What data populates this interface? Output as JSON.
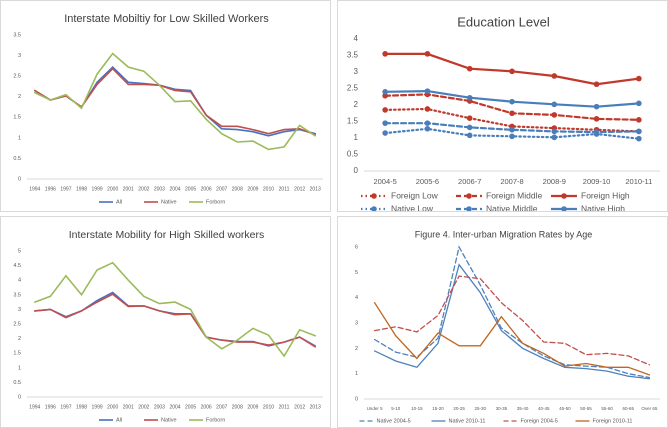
{
  "chart_data": [
    {
      "type": "line",
      "title": "Interstate Mobiltiy for Low Skilled Workers",
      "categories": [
        "1994",
        "1996",
        "1997",
        "1998",
        "1999",
        "2000",
        "2001",
        "2002",
        "2003",
        "2004",
        "2005",
        "2006",
        "2007",
        "2008",
        "2009",
        "2010",
        "2011",
        "2012",
        "2013"
      ],
      "ylim": [
        0,
        3.5
      ],
      "yticks": [
        0,
        0.5,
        1,
        1.5,
        2,
        2.5,
        3,
        3.5
      ],
      "legend": "bottom",
      "series": [
        {
          "name": "All",
          "color": "#4472c4",
          "dash": "solid",
          "values": [
            2.15,
            1.92,
            2.02,
            1.75,
            2.35,
            2.72,
            2.35,
            2.32,
            2.28,
            2.18,
            2.15,
            1.55,
            1.22,
            1.2,
            1.15,
            1.05,
            1.15,
            1.2,
            1.1
          ]
        },
        {
          "name": "Native",
          "color": "#c0504d",
          "dash": "solid",
          "values": [
            2.15,
            1.92,
            2.02,
            1.75,
            2.3,
            2.68,
            2.3,
            2.3,
            2.28,
            2.15,
            2.12,
            1.55,
            1.28,
            1.28,
            1.2,
            1.1,
            1.2,
            1.22,
            1.08
          ]
        },
        {
          "name": "Forborn",
          "color": "#9bbb59",
          "dash": "solid",
          "values": [
            2.1,
            1.92,
            2.05,
            1.72,
            2.55,
            3.05,
            2.72,
            2.62,
            2.28,
            1.88,
            1.9,
            1.45,
            1.1,
            0.9,
            0.92,
            0.72,
            0.78,
            1.3,
            1.05
          ]
        }
      ]
    },
    {
      "type": "line",
      "title": "Education Level",
      "categories": [
        "2004-5",
        "2005-6",
        "2006-7",
        "2007-8",
        "2008-9",
        "2009-10",
        "2010-11"
      ],
      "ylim": [
        0,
        4
      ],
      "yticks": [
        0,
        0.5,
        1,
        1.5,
        2,
        2.5,
        3,
        3.5,
        4
      ],
      "legend": "bottom",
      "markers": true,
      "series": [
        {
          "name": "Foreign Low",
          "color": "#c0392b",
          "dash": "dotted",
          "values": [
            1.85,
            1.88,
            1.6,
            1.35,
            1.3,
            1.25,
            1.2
          ]
        },
        {
          "name": "Foreign Middle",
          "color": "#c0392b",
          "dash": "dashed",
          "values": [
            2.28,
            2.32,
            2.12,
            1.75,
            1.7,
            1.58,
            1.55
          ]
        },
        {
          "name": "Foreign High",
          "color": "#c0392b",
          "dash": "solid",
          "values": [
            3.55,
            3.55,
            3.1,
            3.02,
            2.88,
            2.63,
            2.8
          ]
        },
        {
          "name": "Native Low",
          "color": "#4a7ebb",
          "dash": "dotted",
          "values": [
            1.15,
            1.28,
            1.08,
            1.05,
            1.02,
            1.12,
            0.98
          ]
        },
        {
          "name": "Native Middle",
          "color": "#4a7ebb",
          "dash": "dashed",
          "values": [
            1.45,
            1.45,
            1.32,
            1.25,
            1.2,
            1.18,
            1.2
          ]
        },
        {
          "name": "Native High",
          "color": "#4a7ebb",
          "dash": "solid",
          "values": [
            2.4,
            2.42,
            2.22,
            2.1,
            2.02,
            1.95,
            2.05
          ]
        }
      ]
    },
    {
      "type": "line",
      "title": "Interstate Mobility for High Skilled workers",
      "categories": [
        "1994",
        "1996",
        "1997",
        "1998",
        "1999",
        "2000",
        "2001",
        "2002",
        "2003",
        "2004",
        "2005",
        "2006",
        "2007",
        "2008",
        "2009",
        "2010",
        "2011",
        "2012",
        "2013"
      ],
      "ylim": [
        0,
        5
      ],
      "yticks": [
        0,
        0.5,
        1,
        1.5,
        2,
        2.5,
        3,
        3.5,
        4,
        4.5,
        5
      ],
      "legend": "bottom",
      "series": [
        {
          "name": "All",
          "color": "#4472c4",
          "dash": "solid",
          "values": [
            2.95,
            3.0,
            2.75,
            2.95,
            3.3,
            3.58,
            3.12,
            3.12,
            2.95,
            2.85,
            2.85,
            2.05,
            1.95,
            1.9,
            1.9,
            1.75,
            1.88,
            2.05,
            1.75
          ]
        },
        {
          "name": "Native",
          "color": "#c0504d",
          "dash": "solid",
          "values": [
            2.95,
            3.0,
            2.72,
            2.95,
            3.25,
            3.52,
            3.1,
            3.12,
            2.95,
            2.82,
            2.85,
            2.05,
            1.95,
            1.88,
            1.88,
            1.78,
            1.88,
            2.05,
            1.72
          ]
        },
        {
          "name": "Forborn",
          "color": "#9bbb59",
          "dash": "solid",
          "values": [
            3.25,
            3.45,
            4.15,
            3.5,
            4.35,
            4.6,
            4.0,
            3.45,
            3.2,
            3.25,
            3.0,
            2.05,
            1.65,
            1.95,
            2.35,
            2.12,
            1.4,
            2.3,
            2.1
          ]
        }
      ]
    },
    {
      "type": "line",
      "title": "Figure 4. Inter-urban Migration Rates by Age",
      "categories": [
        "Under 5",
        "5-10",
        "10-15",
        "15-20",
        "20-25",
        "25-30",
        "30-35",
        "35-40",
        "40-45",
        "45-50",
        "50-55",
        "55-60",
        "60-65",
        "Over 65"
      ],
      "ylim": [
        0,
        6
      ],
      "yticks": [
        0,
        1,
        2,
        3,
        4,
        5,
        6
      ],
      "legend": "bottom",
      "series": [
        {
          "name": "Native 2004-5",
          "color": "#4f81bd",
          "dash": "dashed",
          "values": [
            2.35,
            1.85,
            1.65,
            2.4,
            6.0,
            4.5,
            2.8,
            2.2,
            1.7,
            1.35,
            1.3,
            1.25,
            1.0,
            0.85
          ]
        },
        {
          "name": "Native 2010-11",
          "color": "#4f81bd",
          "dash": "solid",
          "values": [
            1.9,
            1.5,
            1.25,
            2.2,
            5.3,
            4.2,
            2.7,
            2.0,
            1.6,
            1.25,
            1.2,
            1.1,
            0.9,
            0.8
          ]
        },
        {
          "name": "Foreign 2004-5",
          "color": "#c0504d",
          "dash": "dashed",
          "values": [
            2.7,
            2.85,
            2.65,
            3.3,
            4.85,
            4.75,
            3.8,
            3.1,
            2.25,
            2.2,
            1.75,
            1.8,
            1.7,
            1.35
          ]
        },
        {
          "name": "Foreign 2010-11",
          "color": "#c0661e",
          "dash": "solid",
          "values": [
            3.8,
            2.5,
            1.6,
            2.6,
            2.1,
            2.1,
            3.25,
            2.2,
            1.8,
            1.3,
            1.4,
            1.25,
            1.25,
            0.95
          ]
        }
      ]
    }
  ]
}
